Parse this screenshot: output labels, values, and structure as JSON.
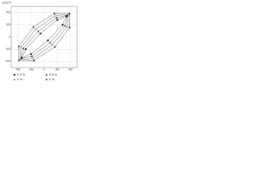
{
  "chart_data": {
    "type": "line",
    "y_label": "σA (T)",
    "xlim": [
      -500,
      500
    ],
    "ylim": [
      -500,
      500
    ],
    "xticks": [
      -400,
      -200,
      0,
      200,
      400
    ],
    "yticks": [
      -400,
      -200,
      0,
      200,
      400
    ],
    "grid": true,
    "legend": "bottom",
    "series": [
      {
        "name": "0.2 %",
        "color": "#333333",
        "marker": "square",
        "x": [
          339,
          199,
          -57,
          -280,
          -339,
          -199,
          57,
          280,
          339
        ],
        "y": [
          339,
          280,
          57,
          -199,
          -339,
          -280,
          -57,
          199,
          339
        ]
      },
      {
        "name": "0.5 %",
        "color": "#333333",
        "marker": "triangle",
        "x": [
          354,
          185,
          -92,
          -315,
          -354,
          -185,
          92,
          315,
          354
        ],
        "y": [
          354,
          315,
          92,
          -185,
          -354,
          -315,
          -92,
          185,
          354
        ]
      },
      {
        "name": "1 %",
        "color": "#333333",
        "marker": "circle",
        "x": [
          368,
          170,
          -127,
          -350,
          -368,
          -170,
          127,
          350,
          368
        ],
        "y": [
          368,
          350,
          127,
          -170,
          -368,
          -350,
          -127,
          170,
          368
        ]
      },
      {
        "name": "2 %",
        "color": "#333333",
        "marker": "diamond",
        "x": [
          382,
          155,
          -163,
          -385,
          -382,
          -155,
          163,
          385,
          382
        ],
        "y": [
          382,
          385,
          163,
          -155,
          -382,
          -385,
          -163,
          155,
          382
        ]
      }
    ]
  }
}
